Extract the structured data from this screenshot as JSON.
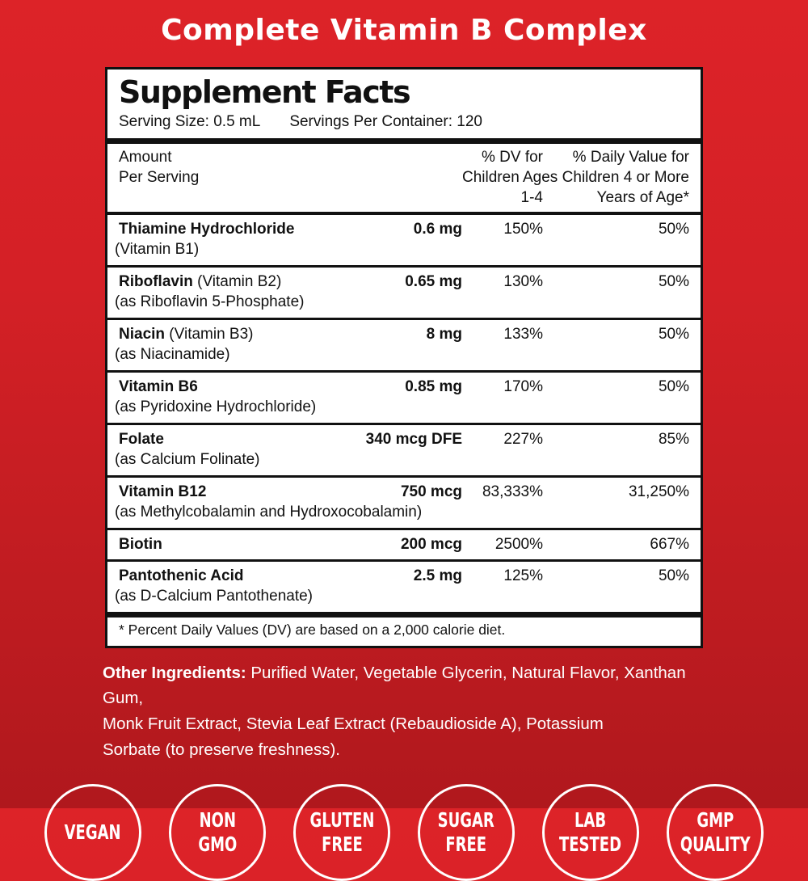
{
  "product_title": "Complete Vitamin B Complex",
  "colors": {
    "background_red_top": "#DD2328",
    "background_red_bottom": "#B0181D",
    "panel_background": "#FFFFFF",
    "panel_border_and_text": "#111111",
    "title_and_badge_text": "#FFFFFF"
  },
  "supplement_facts": {
    "title": "Supplement Facts",
    "serving_size": "Serving Size: 0.5 mL",
    "servings_per_container": "Servings Per Container: 120",
    "header": {
      "col1": "Amount\nPer Serving",
      "col2": "% DV for\nChildren Ages\n1-4",
      "col3": "% Daily Value for\nChildren 4 or More\nYears of Age*"
    },
    "rows": [
      {
        "name": "Thiamine Hydrochloride",
        "name_suffix": "",
        "sub": "(Vitamin B1)",
        "amount": "0.6 mg",
        "dv_children_1_4": "150%",
        "dv_4_plus": "50%"
      },
      {
        "name": "Riboflavin",
        "name_suffix": " (Vitamin B2)",
        "sub": "(as Riboflavin 5-Phosphate)",
        "amount": "0.65 mg",
        "dv_children_1_4": "130%",
        "dv_4_plus": "50%"
      },
      {
        "name": "Niacin",
        "name_suffix": " (Vitamin B3)",
        "sub": "(as Niacinamide)",
        "amount": "8 mg",
        "dv_children_1_4": "133%",
        "dv_4_plus": "50%"
      },
      {
        "name": "Vitamin B6",
        "name_suffix": "",
        "sub": "(as Pyridoxine Hydrochloride)",
        "amount": "0.85 mg",
        "dv_children_1_4": "170%",
        "dv_4_plus": "50%"
      },
      {
        "name": "Folate",
        "name_suffix": "",
        "sub": "(as Calcium Folinate)",
        "amount": "340 mcg DFE",
        "dv_children_1_4": "227%",
        "dv_4_plus": "85%"
      },
      {
        "name": "Vitamin B12",
        "name_suffix": "",
        "sub": "(as Methylcobalamin and Hydroxocobalamin)",
        "amount": "750 mcg",
        "dv_children_1_4": "83,333%",
        "dv_4_plus": "31,250%"
      },
      {
        "name": "Biotin",
        "name_suffix": "",
        "sub": "",
        "amount": "200 mcg",
        "dv_children_1_4": "2500%",
        "dv_4_plus": "667%"
      },
      {
        "name": "Pantothenic Acid",
        "name_suffix": "",
        "sub": "(as D-Calcium Pantothenate)",
        "amount": "2.5 mg",
        "dv_children_1_4": "125%",
        "dv_4_plus": "50%"
      }
    ],
    "footnote": "* Percent Daily Values (DV) are based on a 2,000 calorie diet."
  },
  "other_ingredients": {
    "label": "Other Ingredients:",
    "text": "  Purified Water, Vegetable Glycerin, Natural Flavor, Xanthan Gum,\nMonk Fruit Extract, Stevia Leaf Extract (Rebaudioside A), Potassium\nSorbate (to preserve freshness)."
  },
  "badges": [
    {
      "line1": "VEGAN"
    },
    {
      "line1": "NON",
      "line2": "GMO"
    },
    {
      "line1": "GLUTEN",
      "line2": "FREE"
    },
    {
      "line1": "SUGAR",
      "line2": "FREE"
    },
    {
      "line1": "LAB",
      "line2": "TESTED"
    },
    {
      "line1": "GMP",
      "line2": "QUALITY"
    }
  ]
}
